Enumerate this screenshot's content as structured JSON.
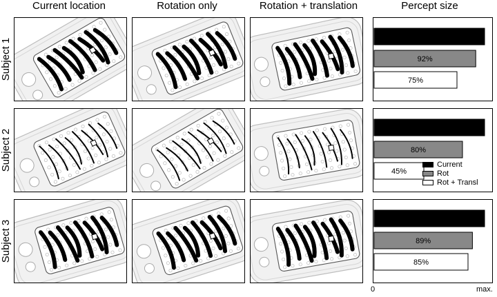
{
  "columns": [
    "Current location",
    "Rotation only",
    "Rotation + translation",
    "Percept size"
  ],
  "rows": [
    "Subject 1",
    "Subject 2",
    "Subject 3"
  ],
  "legend": [
    {
      "label": "Current",
      "color": "#000000"
    },
    {
      "label": "Rot",
      "color": "#888888"
    },
    {
      "label": "Rot + Transl",
      "color": "#ffffff"
    }
  ],
  "axis": {
    "min_label": "0",
    "max_label": "max."
  },
  "chart_data": [
    {
      "type": "bar",
      "orientation": "horizontal",
      "subject": "Subject 1",
      "categories": [
        "Current",
        "Rot",
        "Rot + Transl"
      ],
      "values": [
        100,
        92,
        75
      ],
      "labels": [
        "",
        "92%",
        "75%"
      ],
      "xlim": [
        0,
        100
      ]
    },
    {
      "type": "bar",
      "orientation": "horizontal",
      "subject": "Subject 2",
      "categories": [
        "Current",
        "Rot",
        "Rot + Transl"
      ],
      "values": [
        100,
        80,
        45
      ],
      "labels": [
        "",
        "80%",
        "45%"
      ],
      "xlim": [
        0,
        100
      ]
    },
    {
      "type": "bar",
      "orientation": "horizontal",
      "subject": "Subject 3",
      "categories": [
        "Current",
        "Rot",
        "Rot + Transl"
      ],
      "values": [
        100,
        89,
        85
      ],
      "labels": [
        "",
        "89%",
        "85%"
      ],
      "xlim": [
        0,
        100
      ]
    }
  ]
}
